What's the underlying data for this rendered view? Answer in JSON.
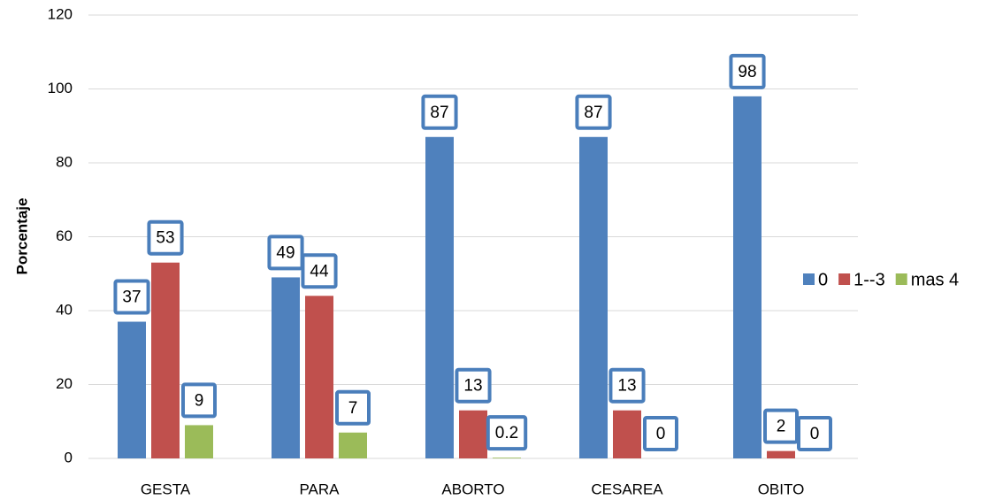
{
  "chart_data": {
    "type": "bar",
    "y_axis_label": "Porcentaje",
    "categories": [
      "GESTA",
      "PARA",
      "ABORTO",
      "CESAREA",
      "OBITO"
    ],
    "series": [
      {
        "name": "0",
        "color": "#4f81bd",
        "values": [
          37,
          49,
          87,
          87,
          98
        ]
      },
      {
        "name": "1--3",
        "color": "#c0504d",
        "values": [
          53,
          44,
          13,
          13,
          2
        ]
      },
      {
        "name": "mas 4",
        "color": "#9bbb59",
        "values": [
          9,
          7,
          0.2,
          0,
          0
        ]
      }
    ],
    "ylim": [
      0,
      120
    ],
    "yticks": [
      0,
      20,
      40,
      60,
      80,
      100,
      120
    ],
    "grid": true,
    "legend": "right"
  }
}
